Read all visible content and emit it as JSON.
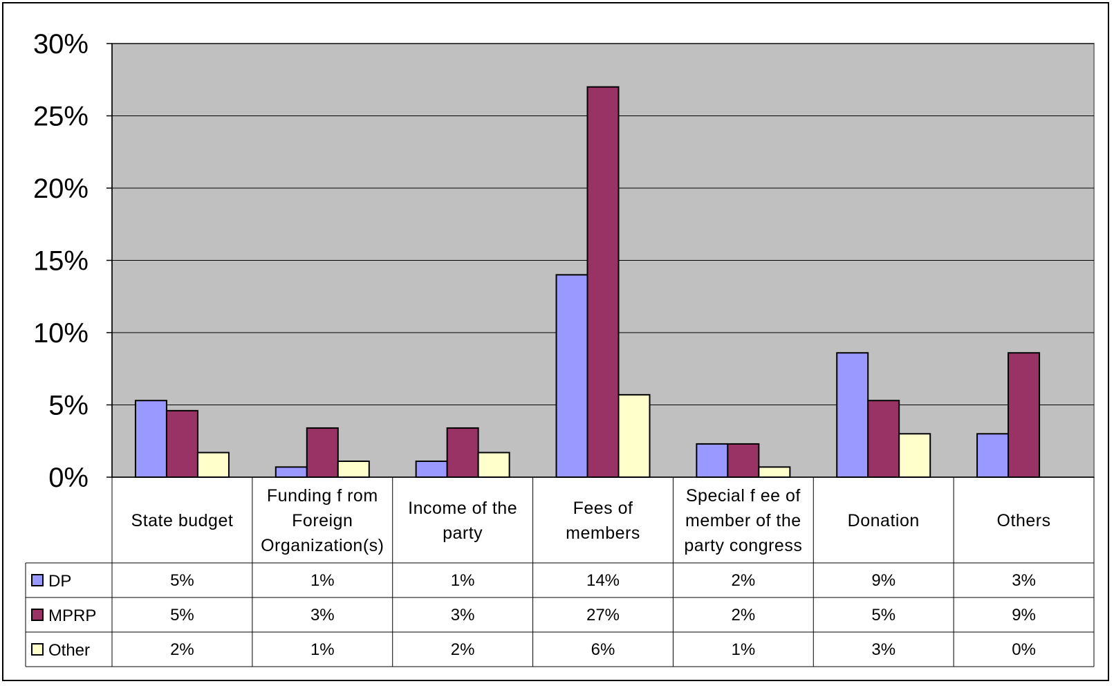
{
  "chart_data": {
    "type": "bar",
    "title": "",
    "xlabel": "",
    "ylabel": "",
    "ylim": [
      0,
      30
    ],
    "yticks": [
      "0%",
      "5%",
      "10%",
      "15%",
      "20%",
      "25%",
      "30%"
    ],
    "grid": true,
    "legend": "data table (left)",
    "categories": [
      [
        "State budget"
      ],
      [
        "Funding f rom",
        "Foreign",
        "Organization(s)"
      ],
      [
        "Income of the",
        "party"
      ],
      [
        "Fees of",
        "members"
      ],
      [
        "Special f ee of",
        "member of the",
        "party congress"
      ],
      [
        "Donation"
      ],
      [
        "Others"
      ]
    ],
    "series": [
      {
        "name": "DP",
        "color": "#9999ff",
        "values": [
          5.3,
          0.7,
          1.1,
          14,
          2.3,
          8.6,
          3.0
        ],
        "labels": [
          "5%",
          "1%",
          "1%",
          "14%",
          "2%",
          "9%",
          "3%"
        ]
      },
      {
        "name": "MPRP",
        "color": "#993366",
        "values": [
          4.6,
          3.4,
          3.4,
          27,
          2.3,
          5.3,
          8.6
        ],
        "labels": [
          "5%",
          "3%",
          "3%",
          "27%",
          "2%",
          "5%",
          "9%"
        ]
      },
      {
        "name": "Other",
        "color": "#ffffcc",
        "values": [
          1.7,
          1.1,
          1.7,
          5.7,
          0.7,
          3.0,
          0
        ],
        "labels": [
          "2%",
          "1%",
          "2%",
          "6%",
          "1%",
          "3%",
          "0%"
        ]
      }
    ],
    "plot_background": "#c0c0c0"
  }
}
